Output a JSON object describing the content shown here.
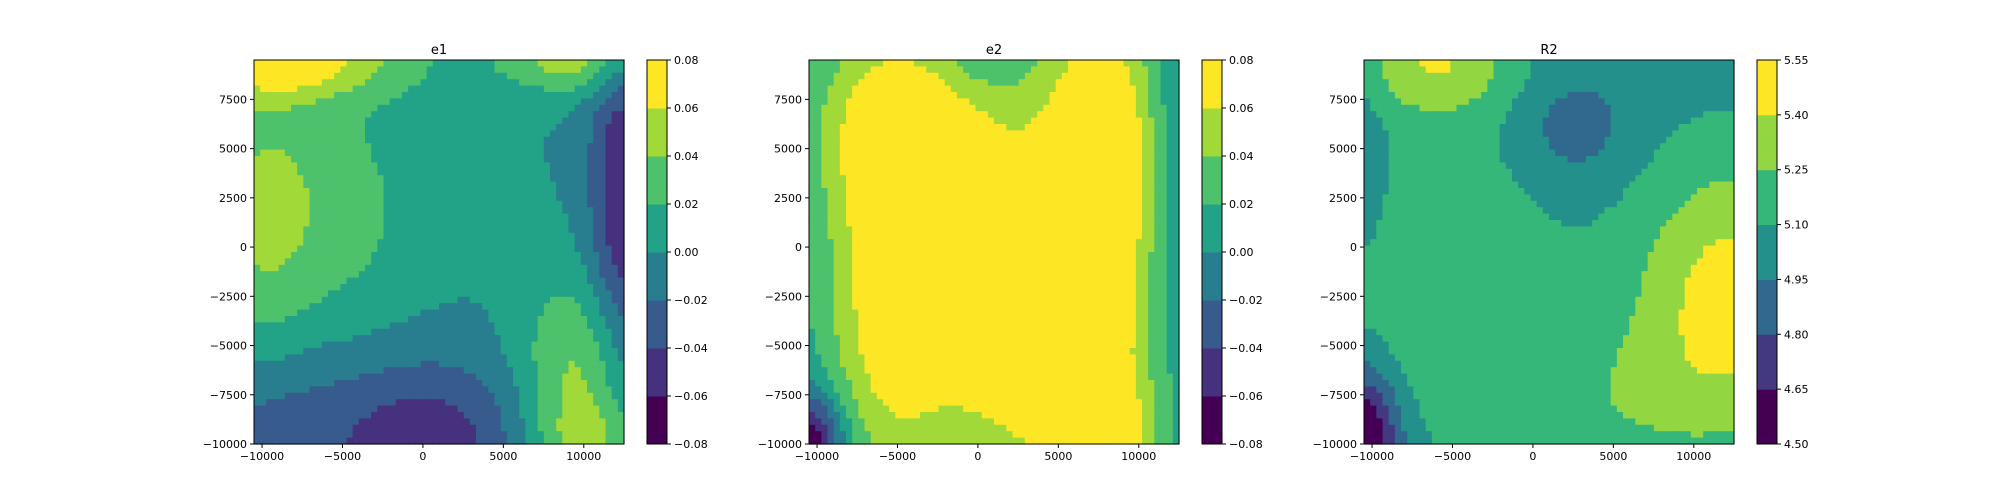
{
  "chart_data": [
    {
      "type": "heatmap",
      "title": "e1",
      "xlim": [
        -10500,
        12500
      ],
      "ylim": [
        -10000,
        9500
      ],
      "xticks": [
        -10000,
        -5000,
        0,
        5000,
        10000
      ],
      "xtick_labels": [
        "−10000",
        "−5000",
        "0",
        "5000",
        "10000"
      ],
      "yticks": [
        -10000,
        -7500,
        -5000,
        -2500,
        0,
        2500,
        5000,
        7500
      ],
      "ytick_labels": [
        "−10000",
        "−7500",
        "−5000",
        "−2500",
        "0",
        "2500",
        "5000",
        "7500"
      ],
      "colorbar": {
        "levels": [
          -0.08,
          -0.06,
          -0.04,
          -0.02,
          0.0,
          0.02,
          0.04,
          0.06,
          0.08
        ],
        "tick_labels": [
          "−0.08",
          "−0.06",
          "−0.04",
          "−0.02",
          "0.00",
          "0.02",
          "0.04",
          "0.06",
          "0.08"
        ]
      },
      "blobs": [
        {
          "x": -10500,
          "y": 0,
          "sx": 2500,
          "sy": 9000,
          "a": 0.03
        },
        {
          "x": -6000,
          "y": 2000,
          "sx": 4000,
          "sy": 4500,
          "a": 0.03
        },
        {
          "x": -4000,
          "y": 9500,
          "sx": 4000,
          "sy": 1500,
          "a": 0.03
        },
        {
          "x": -9000,
          "y": 9500,
          "sx": 3000,
          "sy": 1200,
          "a": 0.06
        },
        {
          "x": 9500,
          "y": 9500,
          "sx": 3500,
          "sy": 1200,
          "a": 0.05
        },
        {
          "x": 9500,
          "y": -6500,
          "sx": 2500,
          "sy": 3500,
          "a": 0.045
        },
        {
          "x": 10500,
          "y": -10000,
          "sx": 2500,
          "sy": 1500,
          "a": 0.03
        },
        {
          "x": 12500,
          "y": 2500,
          "sx": 1500,
          "sy": 6000,
          "a": -0.06
        },
        {
          "x": 0,
          "y": -10000,
          "sx": 4500,
          "sy": 3000,
          "a": -0.055
        },
        {
          "x": -10500,
          "y": -9000,
          "sx": 3500,
          "sy": 3500,
          "a": -0.04
        }
      ]
    },
    {
      "type": "heatmap",
      "title": "e2",
      "xlim": [
        -10500,
        12500
      ],
      "ylim": [
        -10000,
        9500
      ],
      "xticks": [
        -10000,
        -5000,
        0,
        5000,
        10000
      ],
      "xtick_labels": [
        "−10000",
        "−5000",
        "0",
        "5000",
        "10000"
      ],
      "yticks": [
        -10000,
        -7500,
        -5000,
        -2500,
        0,
        2500,
        5000,
        7500
      ],
      "ytick_labels": [
        "−10000",
        "−7500",
        "−5000",
        "−2500",
        "0",
        "2500",
        "5000",
        "7500"
      ],
      "colorbar": {
        "levels": [
          -0.08,
          -0.06,
          -0.04,
          -0.02,
          0.0,
          0.02,
          0.04,
          0.06,
          0.08
        ],
        "tick_labels": [
          "−0.08",
          "−0.06",
          "−0.04",
          "−0.02",
          "0.00",
          "0.02",
          "0.04",
          "0.06",
          "0.08"
        ]
      },
      "blobs": [
        {
          "x": -5500,
          "y": -3000,
          "sx": 3000,
          "sy": 7000,
          "a": 0.07
        },
        {
          "x": -5000,
          "y": 6500,
          "sx": 4000,
          "sy": 3500,
          "a": 0.045
        },
        {
          "x": 8000,
          "y": 4500,
          "sx": 2500,
          "sy": 6500,
          "a": 0.07
        },
        {
          "x": 7500,
          "y": -10000,
          "sx": 2000,
          "sy": 2000,
          "a": 0.07
        },
        {
          "x": 6000,
          "y": -6500,
          "sx": 5000,
          "sy": 5000,
          "a": 0.05
        },
        {
          "x": 1500,
          "y": 6000,
          "sx": 6000,
          "sy": 5000,
          "a": 0.04
        },
        {
          "x": 1500,
          "y": -4000,
          "sx": 3500,
          "sy": 5000,
          "a": 0.045
        },
        {
          "x": 0,
          "y": 9500,
          "sx": 2500,
          "sy": 1800,
          "a": -0.02
        },
        {
          "x": -10500,
          "y": -10000,
          "sx": 1500,
          "sy": 1800,
          "a": -0.085
        },
        {
          "x": 12500,
          "y": 2000,
          "sx": 1500,
          "sy": 9000,
          "a": -0.02
        }
      ]
    },
    {
      "type": "heatmap",
      "title": "R2",
      "xlim": [
        -10500,
        12500
      ],
      "ylim": [
        -10000,
        9500
      ],
      "xticks": [
        -10000,
        -5000,
        0,
        5000,
        10000
      ],
      "xtick_labels": [
        "−10000",
        "−5000",
        "0",
        "5000",
        "10000"
      ],
      "yticks": [
        -10000,
        -7500,
        -5000,
        -2500,
        0,
        2500,
        5000,
        7500
      ],
      "ytick_labels": [
        "−10000",
        "−7500",
        "−5000",
        "−2500",
        "0",
        "2500",
        "5000",
        "7500"
      ],
      "colorbar": {
        "levels": [
          4.5,
          4.65,
          4.8,
          4.95,
          5.1,
          5.25,
          5.4,
          5.55
        ],
        "tick_labels": [
          "4.50",
          "4.65",
          "4.80",
          "4.95",
          "5.10",
          "5.25",
          "5.40",
          "5.55"
        ]
      },
      "blobs": [
        {
          "x": 12500,
          "y": -2500,
          "sx": 4500,
          "sy": 5000,
          "a": 0.45
        },
        {
          "x": -5500,
          "y": -1500,
          "sx": 5000,
          "sy": 6000,
          "a": 0.2
        },
        {
          "x": -6000,
          "y": 9500,
          "sx": 3500,
          "sy": 2000,
          "a": 0.35
        },
        {
          "x": 5000,
          "y": -8000,
          "sx": 5000,
          "sy": 3000,
          "a": 0.15
        },
        {
          "x": 2500,
          "y": 6000,
          "sx": 2500,
          "sy": 2000,
          "a": -0.17
        },
        {
          "x": -10500,
          "y": -10000,
          "sx": 1500,
          "sy": 2500,
          "a": -0.65
        },
        {
          "x": -10500,
          "y": 4000,
          "sx": 1000,
          "sy": 3000,
          "a": -0.12
        }
      ]
    }
  ]
}
